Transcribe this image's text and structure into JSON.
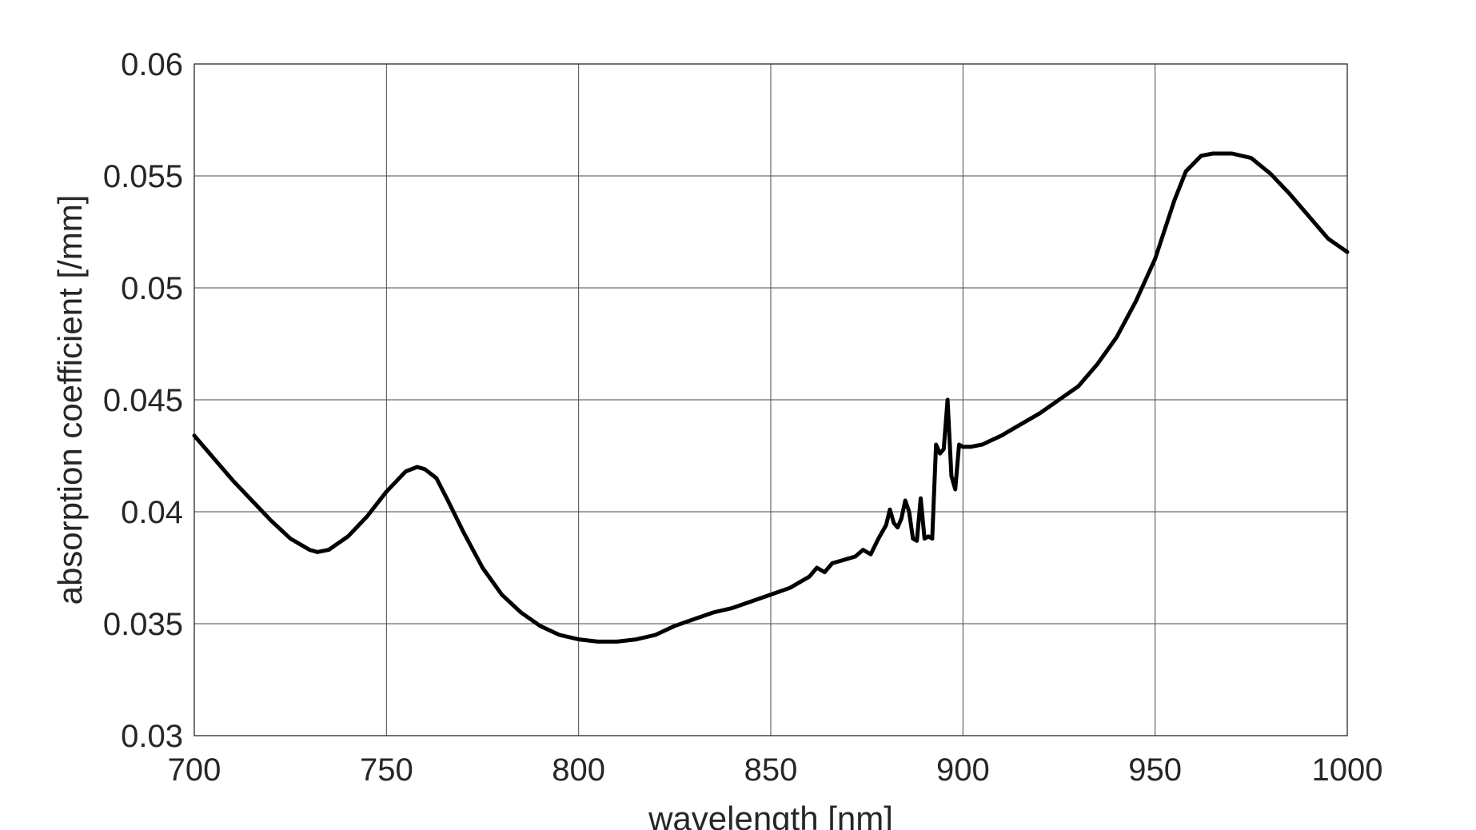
{
  "chart_data": {
    "type": "line",
    "xlabel": "wavelength [nm]",
    "ylabel": "absorption coefficient [/mm]",
    "xlim": [
      700,
      1000
    ],
    "ylim": [
      0.03,
      0.06
    ],
    "xticks": [
      700,
      750,
      800,
      850,
      900,
      950,
      1000
    ],
    "xtick_labels": [
      "700",
      "750",
      "800",
      "850",
      "900",
      "950",
      "1000"
    ],
    "yticks": [
      0.03,
      0.035,
      0.04,
      0.045,
      0.05,
      0.055,
      0.06
    ],
    "ytick_labels": [
      "0.03",
      "0.035",
      "0.04",
      "0.045",
      "0.05",
      "0.055",
      "0.06"
    ],
    "grid": true,
    "line_color": "#000000",
    "series": [
      {
        "x": [
          700,
          705,
          710,
          715,
          720,
          725,
          730,
          732,
          735,
          740,
          745,
          750,
          755,
          758,
          760,
          763,
          766,
          770,
          775,
          780,
          785,
          790,
          795,
          800,
          805,
          810,
          815,
          820,
          825,
          830,
          835,
          840,
          845,
          850,
          855,
          860,
          862,
          864,
          866,
          868,
          870,
          872,
          874,
          876,
          878,
          880,
          881,
          882,
          883,
          884,
          885,
          886,
          887,
          888,
          889,
          890,
          891,
          892,
          893,
          894,
          895,
          896,
          897,
          898,
          899,
          900,
          902,
          905,
          910,
          915,
          920,
          925,
          930,
          935,
          940,
          945,
          950,
          955,
          958,
          962,
          965,
          970,
          975,
          980,
          985,
          990,
          995,
          1000
        ],
        "y": [
          0.0434,
          0.0424,
          0.0414,
          0.0405,
          0.0396,
          0.0388,
          0.0383,
          0.0382,
          0.0383,
          0.0389,
          0.0398,
          0.0409,
          0.0418,
          0.042,
          0.0419,
          0.0415,
          0.0405,
          0.0391,
          0.0375,
          0.0363,
          0.0355,
          0.0349,
          0.0345,
          0.0343,
          0.0342,
          0.0342,
          0.0343,
          0.0345,
          0.0349,
          0.0352,
          0.0355,
          0.0357,
          0.036,
          0.0363,
          0.0366,
          0.0371,
          0.0375,
          0.0373,
          0.0377,
          0.0378,
          0.0379,
          0.038,
          0.0383,
          0.0381,
          0.0388,
          0.0394,
          0.0401,
          0.0395,
          0.0393,
          0.0397,
          0.0405,
          0.04,
          0.0388,
          0.0387,
          0.0406,
          0.0388,
          0.0389,
          0.0388,
          0.043,
          0.0426,
          0.0428,
          0.045,
          0.0416,
          0.041,
          0.043,
          0.0429,
          0.0429,
          0.043,
          0.0434,
          0.0439,
          0.0444,
          0.045,
          0.0456,
          0.0466,
          0.0478,
          0.0494,
          0.0513,
          0.0539,
          0.0552,
          0.0559,
          0.056,
          0.056,
          0.0558,
          0.0551,
          0.0542,
          0.0532,
          0.0522,
          0.0516
        ]
      }
    ]
  }
}
